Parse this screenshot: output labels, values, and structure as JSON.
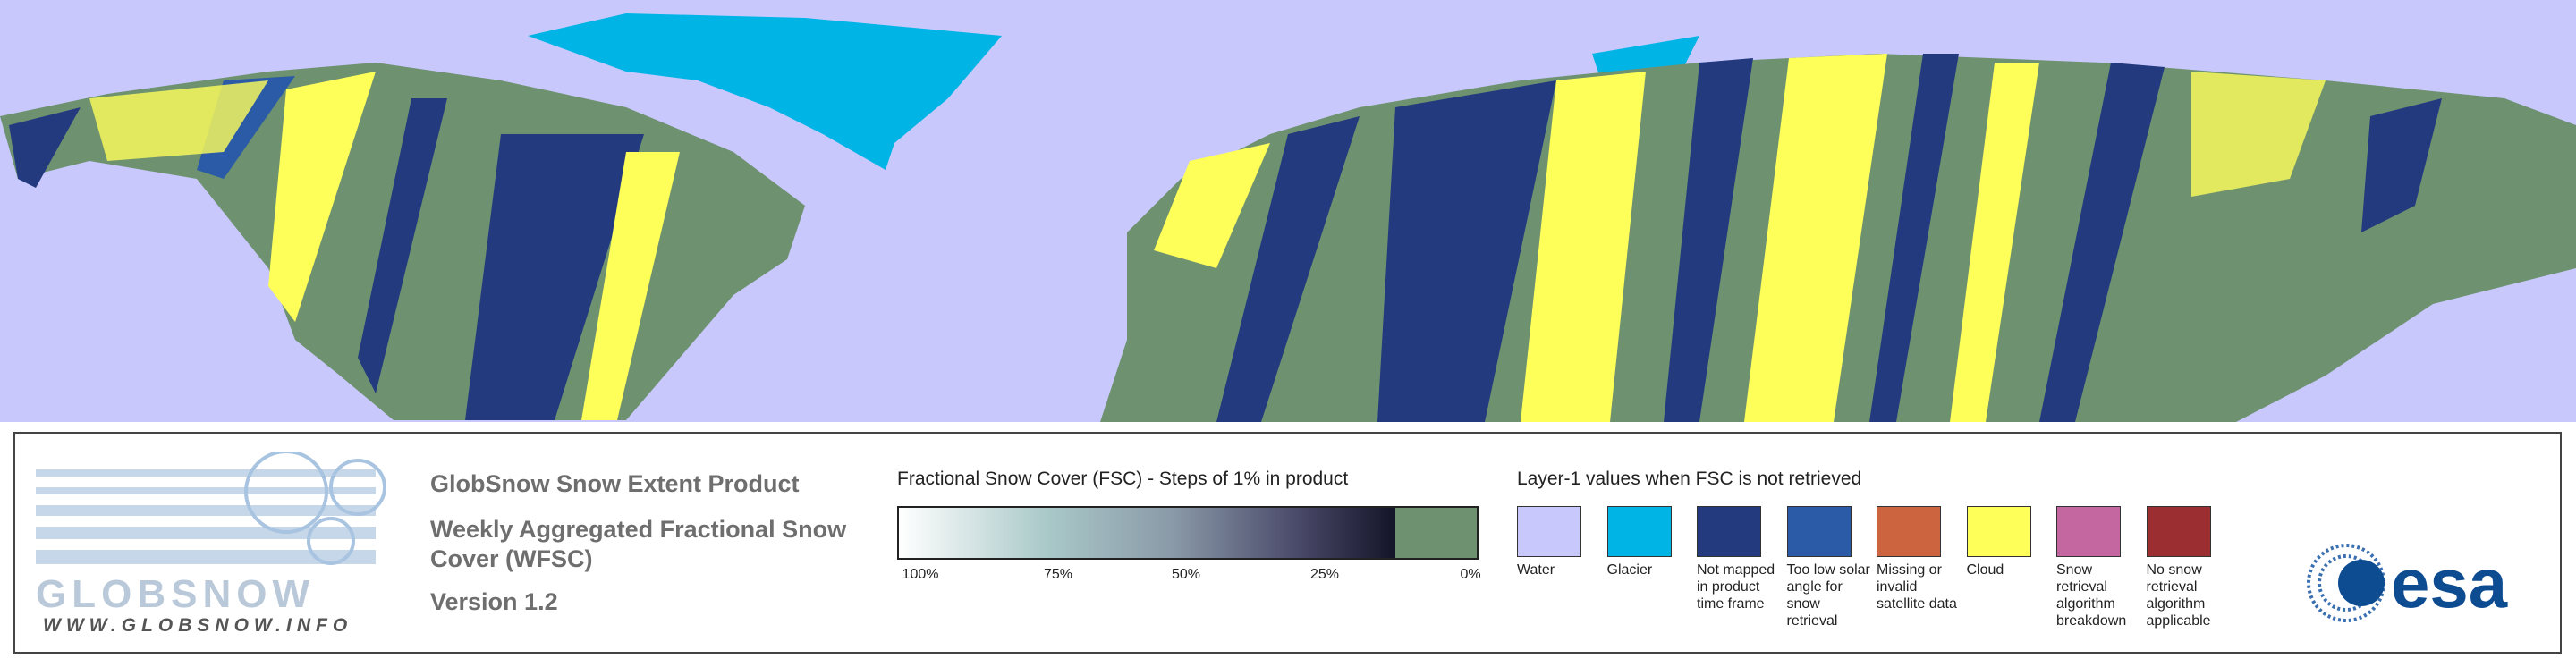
{
  "header": {
    "title": "GlobSnow Snow Extent Product",
    "subtitle": "Weekly Aggregated Fractional Snow Cover (WFSC)",
    "version": "Version 1.2"
  },
  "logos": {
    "globsnow": "GLOBSNOW",
    "url": "WWW.GLOBSNOW.INFO",
    "esa": "esa"
  },
  "fsc_legend": {
    "title": "Fractional Snow Cover (FSC) - Steps of 1% in product",
    "ticks": [
      "100%",
      "75%",
      "50%",
      "25%",
      "0%"
    ]
  },
  "layer_legend": {
    "title": "Layer-1 values when FSC is not retrieved",
    "items": [
      {
        "label": "Water",
        "color": "#c8c8fc"
      },
      {
        "label": "Glacier",
        "color": "#00b4e6"
      },
      {
        "label": "Not mapped in product time frame",
        "color": "#233a7e"
      },
      {
        "label": "Too low solar angle for snow retrieval",
        "color": "#2b5aa6"
      },
      {
        "label": "Missing or invalid satellite data",
        "color": "#cd6440"
      },
      {
        "label": "Cloud",
        "color": "#ffff5a"
      },
      {
        "label": "Snow retrieval algorithm breakdown",
        "color": "#c466a0"
      },
      {
        "label": "No snow retrieval algorithm applicable",
        "color": "#9a2e30"
      }
    ]
  }
}
